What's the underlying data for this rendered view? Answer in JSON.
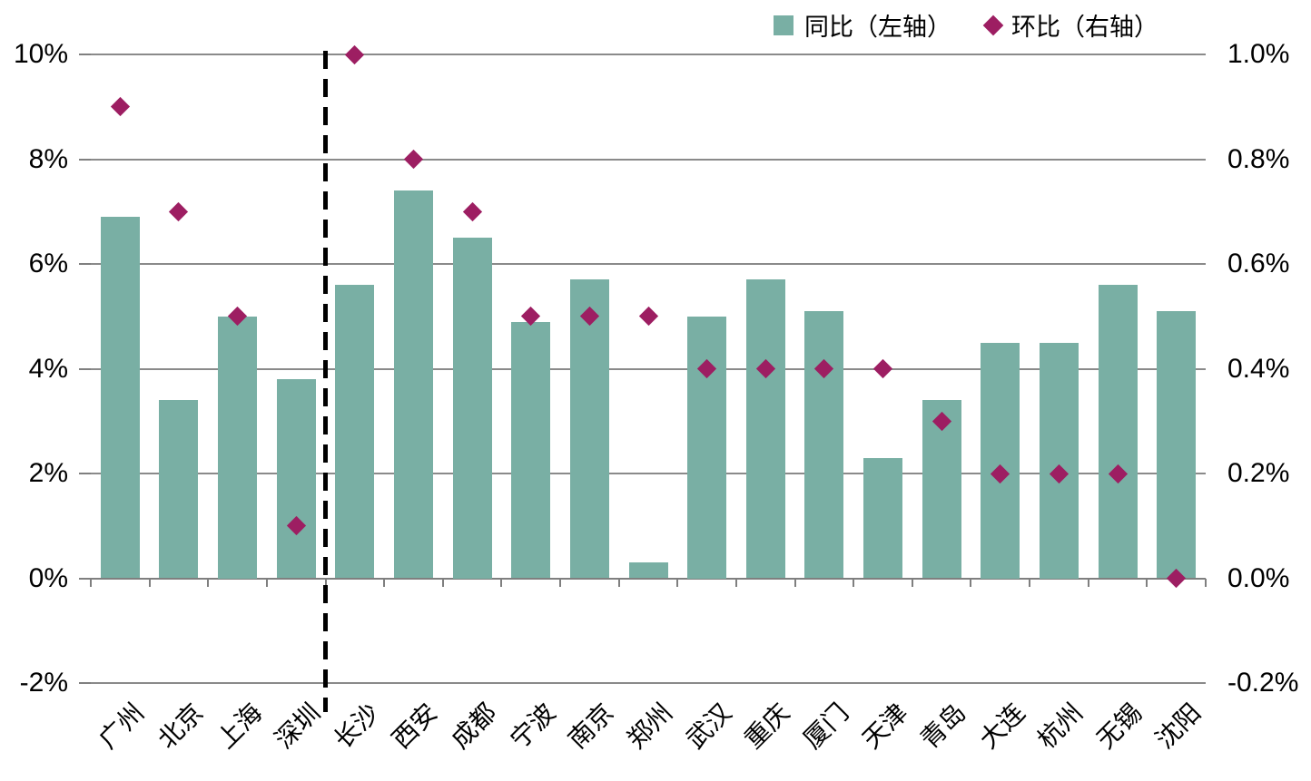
{
  "legend": {
    "series1_label": "同比（左轴）",
    "series2_label": "环比（右轴）"
  },
  "colors": {
    "bar": "#79AFA4",
    "diamond": "#9D1E62",
    "gridline": "#8A8A8A",
    "axis_line": "#7F7F7F",
    "separator_line": "#000000",
    "text": "#000000"
  },
  "chart_data": {
    "type": "bar",
    "subtype": "bar-left-axis with scatter-diamond-right-axis combo",
    "categories": [
      "广州",
      "北京",
      "上海",
      "深圳",
      "长沙",
      "西安",
      "成都",
      "宁波",
      "南京",
      "郑州",
      "武汉",
      "重庆",
      "厦门",
      "天津",
      "青岛",
      "大连",
      "杭州",
      "无锡",
      "沈阳"
    ],
    "series": [
      {
        "name": "同比（左轴）",
        "type": "bar",
        "axis": "left",
        "values": [
          6.9,
          3.4,
          5.0,
          3.8,
          5.6,
          7.4,
          6.5,
          4.9,
          5.7,
          0.3,
          5.0,
          5.7,
          5.1,
          2.3,
          3.4,
          4.5,
          4.5,
          5.6,
          5.1
        ]
      },
      {
        "name": "环比（右轴）",
        "type": "scatter",
        "marker": "diamond",
        "axis": "right",
        "values": [
          0.9,
          0.7,
          0.5,
          0.1,
          1.0,
          0.8,
          0.7,
          0.5,
          0.5,
          0.5,
          0.4,
          0.4,
          0.4,
          0.4,
          0.3,
          0.2,
          0.2,
          0.2,
          0.0
        ]
      }
    ],
    "left_axis": {
      "tick_labels": [
        "10%",
        "8%",
        "6%",
        "4%",
        "2%",
        "0%",
        "-2%"
      ],
      "tick_values": [
        10,
        8,
        6,
        4,
        2,
        0,
        -2
      ],
      "min": -2,
      "max": 10,
      "unit": "%"
    },
    "right_axis": {
      "tick_labels": [
        "1.0%",
        "0.8%",
        "0.6%",
        "0.4%",
        "0.2%",
        "0.0%",
        "-0.2%"
      ],
      "tick_values": [
        1.0,
        0.8,
        0.6,
        0.4,
        0.2,
        0.0,
        -0.2
      ],
      "min": -0.2,
      "max": 1.0,
      "unit": "%"
    },
    "separator_after_category_index": 3,
    "grid": true,
    "legend_position": "top-right",
    "title": "",
    "xlabel": "",
    "ylabel": ""
  }
}
